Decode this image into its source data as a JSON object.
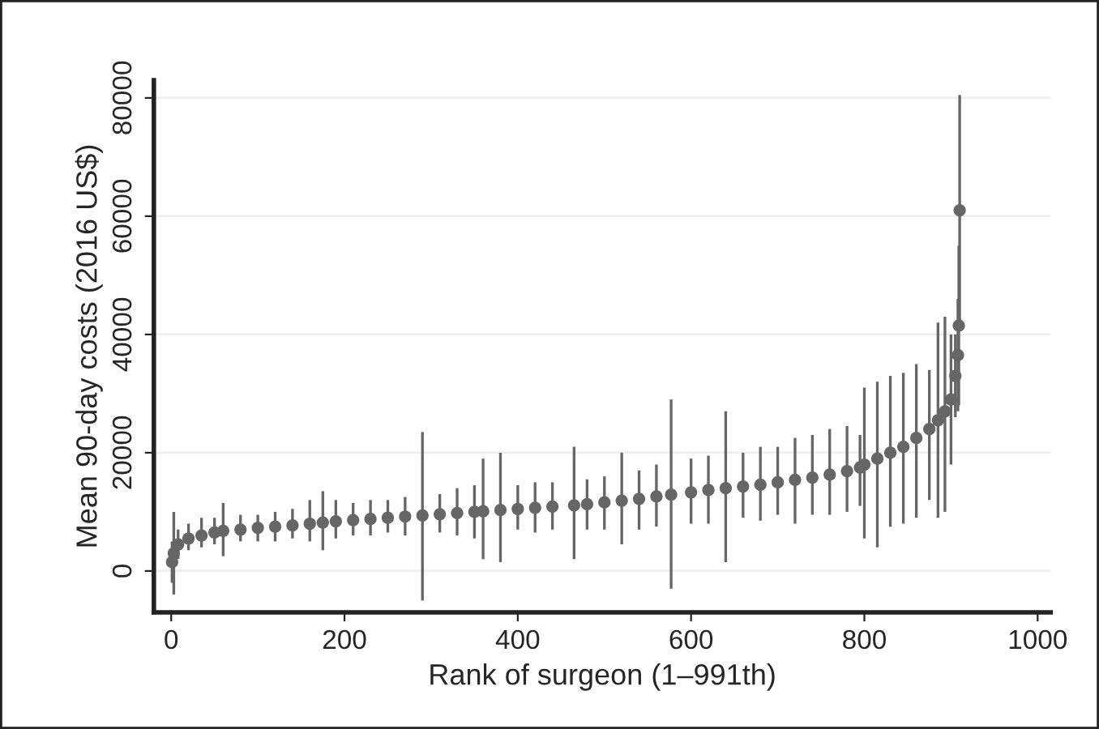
{
  "chart_data": {
    "type": "scatter",
    "xlabel": "Rank of surgeon (1–991th)",
    "ylabel": "Mean 90-day costs (2016 US$)",
    "xlim": [
      -20,
      1015
    ],
    "ylim": [
      -7000,
      83000
    ],
    "xticks": [
      0,
      200,
      400,
      600,
      800,
      1000
    ],
    "yticks": [
      0,
      20000,
      40000,
      60000,
      80000
    ],
    "grid": "y",
    "marker": "circle",
    "x": [
      1,
      3,
      8,
      20,
      35,
      50,
      60,
      80,
      100,
      120,
      140,
      160,
      175,
      190,
      210,
      230,
      250,
      270,
      290,
      310,
      330,
      350,
      360,
      380,
      400,
      420,
      440,
      465,
      480,
      500,
      520,
      540,
      560,
      577,
      600,
      620,
      640,
      660,
      680,
      700,
      720,
      740,
      760,
      780,
      795,
      800,
      815,
      830,
      845,
      860,
      875,
      885,
      893,
      900,
      905,
      908,
      909,
      910
    ],
    "series": [
      {
        "color": "#666666",
        "values": [
          1500,
          3000,
          4500,
          5500,
          6000,
          6500,
          6800,
          7000,
          7300,
          7500,
          7700,
          8000,
          8200,
          8400,
          8600,
          8800,
          9000,
          9200,
          9400,
          9600,
          9800,
          10000,
          10100,
          10300,
          10500,
          10700,
          10900,
          11100,
          11300,
          11600,
          11900,
          12200,
          12600,
          12900,
          13300,
          13700,
          14000,
          14300,
          14600,
          15000,
          15400,
          15800,
          16300,
          16900,
          17500,
          18000,
          19000,
          20000,
          21000,
          22500,
          24000,
          25500,
          27000,
          29000,
          33000,
          36500,
          41500,
          61000
        ],
        "errors": [
          [
            -2000,
            5000
          ],
          [
            -4000,
            10000
          ],
          [
            2000,
            7000
          ],
          [
            3500,
            8000
          ],
          [
            4000,
            9000
          ],
          [
            4500,
            9000
          ],
          [
            2500,
            11500
          ],
          [
            5000,
            9500
          ],
          [
            5000,
            9500
          ],
          [
            5000,
            10000
          ],
          [
            5500,
            10500
          ],
          [
            5000,
            12000
          ],
          [
            3500,
            13500
          ],
          [
            5500,
            12000
          ],
          [
            6000,
            11500
          ],
          [
            6000,
            12000
          ],
          [
            6500,
            12000
          ],
          [
            6000,
            12500
          ],
          [
            -5000,
            23500
          ],
          [
            6500,
            13000
          ],
          [
            6000,
            14000
          ],
          [
            5500,
            14500
          ],
          [
            2000,
            19000
          ],
          [
            1500,
            20000
          ],
          [
            7000,
            14500
          ],
          [
            6500,
            15000
          ],
          [
            7000,
            15000
          ],
          [
            2000,
            21000
          ],
          [
            7000,
            15500
          ],
          [
            7000,
            16000
          ],
          [
            4500,
            20000
          ],
          [
            7000,
            17000
          ],
          [
            7500,
            18000
          ],
          [
            -3000,
            29000
          ],
          [
            8000,
            19000
          ],
          [
            8000,
            19500
          ],
          [
            1500,
            27000
          ],
          [
            9000,
            20000
          ],
          [
            8500,
            21000
          ],
          [
            9500,
            21000
          ],
          [
            8000,
            22500
          ],
          [
            9500,
            23000
          ],
          [
            9500,
            24000
          ],
          [
            10000,
            24500
          ],
          [
            11000,
            23000
          ],
          [
            5500,
            31000
          ],
          [
            4000,
            32000
          ],
          [
            7500,
            33000
          ],
          [
            8000,
            33500
          ],
          [
            9000,
            35000
          ],
          [
            12000,
            34000
          ],
          [
            9000,
            42000
          ],
          [
            10000,
            43000
          ],
          [
            18000,
            40000
          ],
          [
            26000,
            40000
          ],
          [
            27000,
            46000
          ],
          [
            28000,
            55000
          ],
          [
            42000,
            80500
          ]
        ]
      }
    ]
  }
}
